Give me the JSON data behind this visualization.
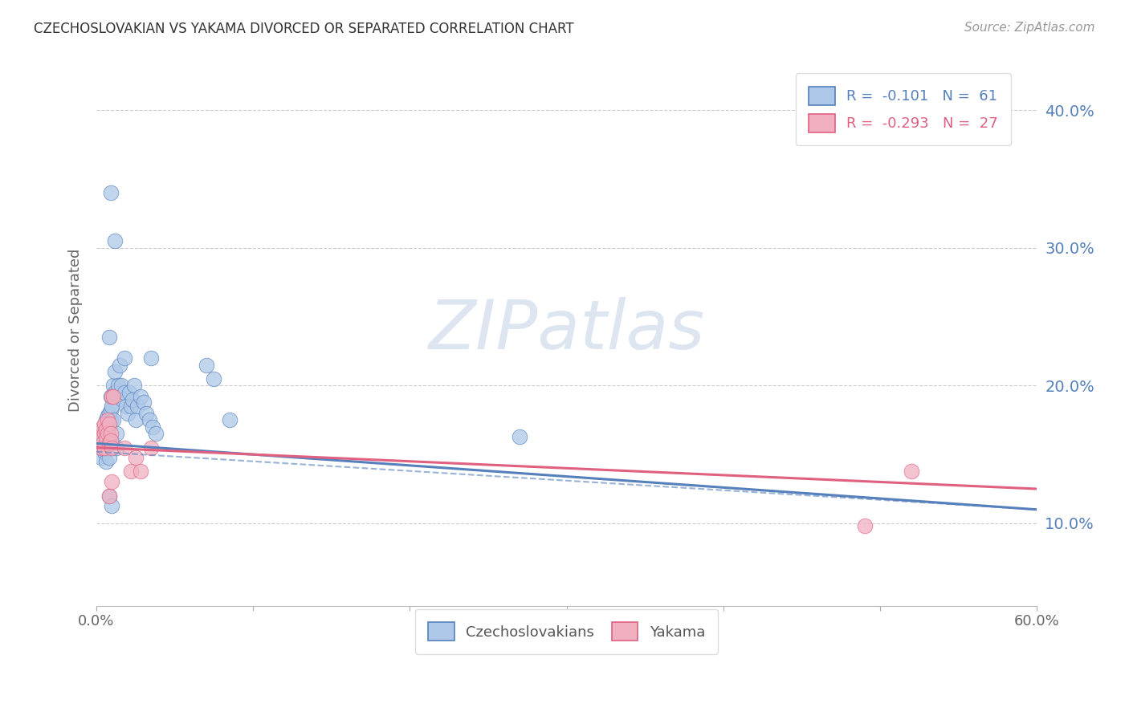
{
  "title": "CZECHOSLOVAKIAN VS YAKAMA DIVORCED OR SEPARATED CORRELATION CHART",
  "source": "Source: ZipAtlas.com",
  "ylabel": "Divorced or Separated",
  "ytick_vals": [
    0.1,
    0.2,
    0.3,
    0.4
  ],
  "ytick_labels": [
    "10.0%",
    "20.0%",
    "30.0%",
    "40.0%"
  ],
  "xlim": [
    0.0,
    0.6
  ],
  "ylim": [
    0.04,
    0.44
  ],
  "legend_blue_label": "R =  -0.101   N =  61",
  "legend_pink_label": "R =  -0.293   N =  27",
  "blue_scatter": [
    [
      0.003,
      0.155
    ],
    [
      0.003,
      0.148
    ],
    [
      0.004,
      0.158
    ],
    [
      0.004,
      0.162
    ],
    [
      0.005,
      0.155
    ],
    [
      0.005,
      0.165
    ],
    [
      0.005,
      0.152
    ],
    [
      0.005,
      0.17
    ],
    [
      0.006,
      0.16
    ],
    [
      0.006,
      0.168
    ],
    [
      0.006,
      0.175
    ],
    [
      0.006,
      0.145
    ],
    [
      0.007,
      0.172
    ],
    [
      0.007,
      0.178
    ],
    [
      0.007,
      0.155
    ],
    [
      0.007,
      0.163
    ],
    [
      0.008,
      0.148
    ],
    [
      0.008,
      0.158
    ],
    [
      0.008,
      0.17
    ],
    [
      0.008,
      0.18
    ],
    [
      0.009,
      0.175
    ],
    [
      0.009,
      0.182
    ],
    [
      0.009,
      0.192
    ],
    [
      0.01,
      0.16
    ],
    [
      0.01,
      0.185
    ],
    [
      0.011,
      0.175
    ],
    [
      0.011,
      0.2
    ],
    [
      0.012,
      0.195
    ],
    [
      0.012,
      0.21
    ],
    [
      0.013,
      0.155
    ],
    [
      0.013,
      0.165
    ],
    [
      0.014,
      0.2
    ],
    [
      0.015,
      0.215
    ],
    [
      0.016,
      0.2
    ],
    [
      0.017,
      0.19
    ],
    [
      0.018,
      0.195
    ],
    [
      0.019,
      0.185
    ],
    [
      0.02,
      0.18
    ],
    [
      0.021,
      0.195
    ],
    [
      0.022,
      0.185
    ],
    [
      0.023,
      0.19
    ],
    [
      0.024,
      0.2
    ],
    [
      0.025,
      0.175
    ],
    [
      0.026,
      0.185
    ],
    [
      0.028,
      0.192
    ],
    [
      0.03,
      0.188
    ],
    [
      0.032,
      0.18
    ],
    [
      0.034,
      0.175
    ],
    [
      0.036,
      0.17
    ],
    [
      0.038,
      0.165
    ],
    [
      0.009,
      0.34
    ],
    [
      0.012,
      0.305
    ],
    [
      0.008,
      0.235
    ],
    [
      0.018,
      0.22
    ],
    [
      0.035,
      0.22
    ],
    [
      0.07,
      0.215
    ],
    [
      0.075,
      0.205
    ],
    [
      0.085,
      0.175
    ],
    [
      0.008,
      0.12
    ],
    [
      0.01,
      0.113
    ],
    [
      0.27,
      0.163
    ]
  ],
  "pink_scatter": [
    [
      0.003,
      0.162
    ],
    [
      0.003,
      0.155
    ],
    [
      0.004,
      0.17
    ],
    [
      0.004,
      0.158
    ],
    [
      0.005,
      0.165
    ],
    [
      0.005,
      0.155
    ],
    [
      0.005,
      0.172
    ],
    [
      0.006,
      0.168
    ],
    [
      0.006,
      0.162
    ],
    [
      0.007,
      0.175
    ],
    [
      0.007,
      0.165
    ],
    [
      0.008,
      0.158
    ],
    [
      0.008,
      0.172
    ],
    [
      0.009,
      0.165
    ],
    [
      0.009,
      0.16
    ],
    [
      0.01,
      0.155
    ],
    [
      0.01,
      0.192
    ],
    [
      0.011,
      0.192
    ],
    [
      0.008,
      0.12
    ],
    [
      0.01,
      0.13
    ],
    [
      0.018,
      0.155
    ],
    [
      0.022,
      0.138
    ],
    [
      0.025,
      0.148
    ],
    [
      0.028,
      0.138
    ],
    [
      0.035,
      0.155
    ],
    [
      0.52,
      0.138
    ],
    [
      0.49,
      0.098
    ]
  ],
  "blue_color": "#adc8e8",
  "pink_color": "#f0b0c0",
  "blue_line_color": "#5580bb",
  "pink_line_color": "#e06080",
  "watermark": "ZIPatlas",
  "watermark_color": "#dde6f0",
  "background_color": "#ffffff",
  "grid_color": "#cccccc"
}
